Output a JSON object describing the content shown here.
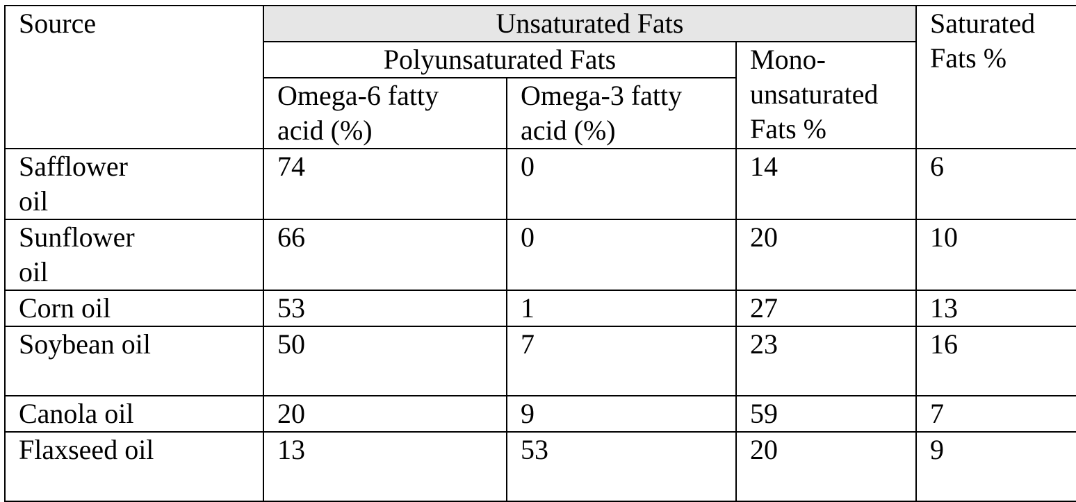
{
  "table": {
    "header": {
      "source": "Source",
      "unsaturated": "Unsaturated Fats",
      "polyunsaturated": "Polyunsaturated Fats",
      "omega6": "Omega-6 fatty acid (%)",
      "omega3": "Omega-3 fatty acid (%)",
      "mono": "Mono- unsaturated Fats %",
      "saturated": "Saturated Fats %"
    },
    "rows": [
      {
        "source": "Safflower oil",
        "omega6": "74",
        "omega3": "0",
        "mono": "14",
        "saturated": "6"
      },
      {
        "source": "Sunflower oil",
        "omega6": "66",
        "omega3": "0",
        "mono": "20",
        "saturated": "10"
      },
      {
        "source": "Corn oil",
        "omega6": "53",
        "omega3": "1",
        "mono": "27",
        "saturated": "13"
      },
      {
        "source": "Soybean oil",
        "omega6": "50",
        "omega3": "7",
        "mono": "23",
        "saturated": "16"
      },
      {
        "source": "Canola oil",
        "omega6": "20",
        "omega3": "9",
        "mono": "59",
        "saturated": "7"
      },
      {
        "source": "Flaxseed oil",
        "omega6": "13",
        "omega3": "53",
        "mono": "20",
        "saturated": "9"
      }
    ]
  }
}
